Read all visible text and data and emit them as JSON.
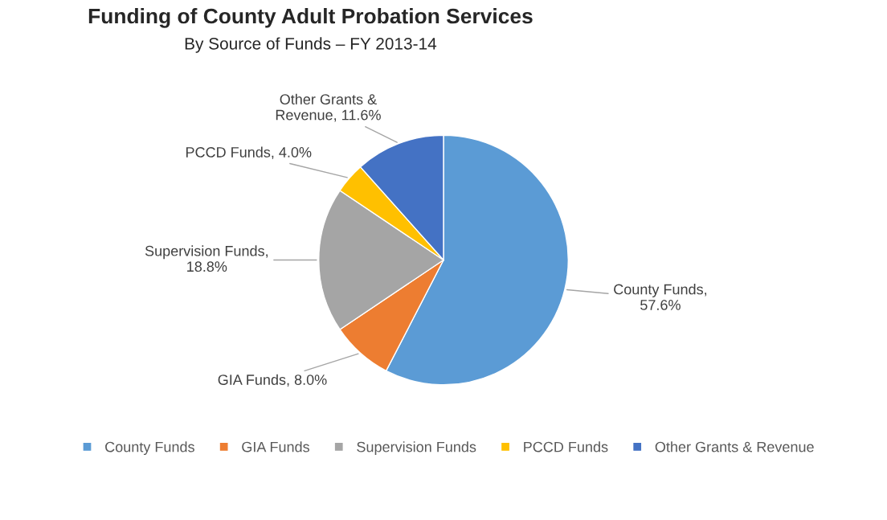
{
  "chart_data": {
    "type": "pie",
    "title": "Funding of County Adult Probation Services",
    "subtitle": "By Source of Funds – FY 2013-14",
    "categories": [
      "County Funds",
      "GIA Funds",
      "Supervision Funds",
      "PCCD Funds",
      "Other Grants & Revenue"
    ],
    "values": [
      57.6,
      8.0,
      18.8,
      4.0,
      11.6
    ],
    "colors": [
      "#5b9bd5",
      "#ed7d31",
      "#a5a5a5",
      "#ffc000",
      "#4472c4"
    ],
    "value_labels": [
      "County Funds,\n57.6%",
      "GIA Funds, 8.0%",
      "Supervision Funds,\n18.8%",
      "PCCD Funds, 4.0%",
      "Other Grants &\nRevenue, 11.6%"
    ],
    "legend": "bottom"
  }
}
